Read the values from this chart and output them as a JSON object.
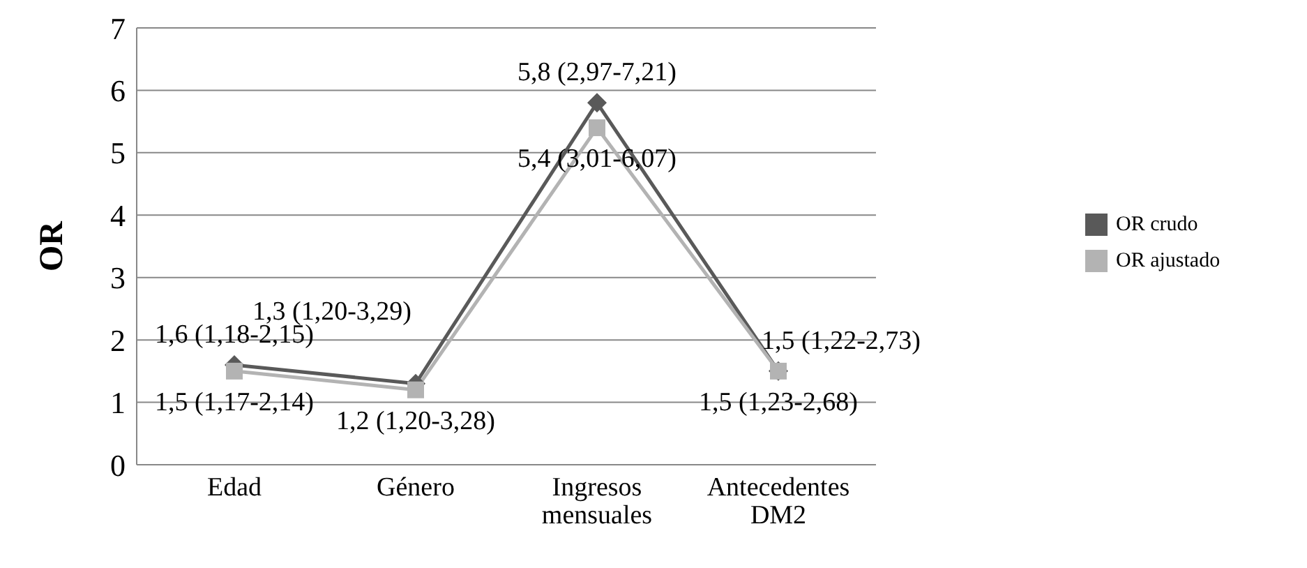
{
  "chart_data": {
    "type": "line",
    "ylabel": "OR",
    "categories": [
      "Edad",
      "Género",
      "Ingresos mensuales",
      "Antecedentes DM2"
    ],
    "series": [
      {
        "name": "OR crudo",
        "color": "#595959",
        "marker": "diamond",
        "values": [
          1.6,
          1.3,
          5.8,
          1.5
        ],
        "value_labels": [
          "1,6 (1,18-2,15)",
          "1,3 (1,20-3,29)",
          "5,8 (2,97-7,21)",
          "1,5 (1,22-2,73)"
        ]
      },
      {
        "name": "OR ajustado",
        "color": "#b3b3b3",
        "marker": "square",
        "values": [
          1.5,
          1.2,
          5.4,
          1.5
        ],
        "value_labels": [
          "1,5 (1,17-2,14)",
          "1,2 (1,20-3,28)",
          "5,4 (3,01-6,07)",
          "1,5 (1,23-2,68)"
        ]
      }
    ],
    "ylim": [
      0,
      7
    ],
    "yticks": [
      0,
      1,
      2,
      3,
      4,
      5,
      6,
      7
    ],
    "grid": "y",
    "legend": "right"
  }
}
